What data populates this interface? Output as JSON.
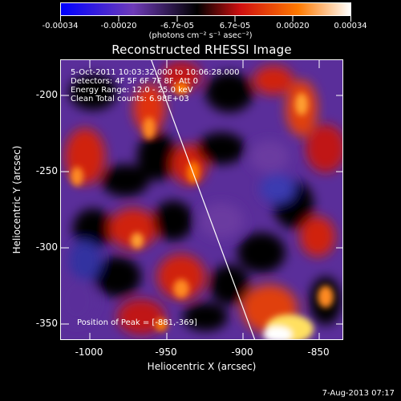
{
  "colorbar": {
    "tick_labels": [
      "-0.00034",
      "-0.00020",
      "-6.7e-05",
      "6.7e-05",
      "0.00020",
      "0.00034"
    ],
    "units": "(photons cm⁻² s⁻¹ asec⁻²)",
    "colors": [
      "#0000ff",
      "#6e3bb8",
      "#000000",
      "#d01010",
      "#ff7a00",
      "#ffffff"
    ]
  },
  "plot": {
    "title": "Reconstructed RHESSI Image",
    "info_lines": [
      "5-Oct-2011 10:03:32.000 to 10:06:28.000",
      "Detectors: 4F 5F 6F 7F 8F, Att 0",
      "Energy Range: 12.0 - 25.0 keV",
      "Clean     Total counts: 6.98E+03"
    ],
    "peak_label": "Position of Peak = [-881,-369]",
    "xlabel": "Heliocentric X (arcsec)",
    "ylabel": "Heliocentric Y (arcsec)",
    "x_ticks": [
      "-1000",
      "-950",
      "-900",
      "-850"
    ],
    "y_ticks": [
      "-200",
      "-250",
      "-300",
      "-350"
    ],
    "x_range": [
      -1017,
      -832
    ],
    "y_range": [
      -370,
      -181
    ]
  },
  "footer": {
    "timestamp": "7-Aug-2013 07:17"
  }
}
